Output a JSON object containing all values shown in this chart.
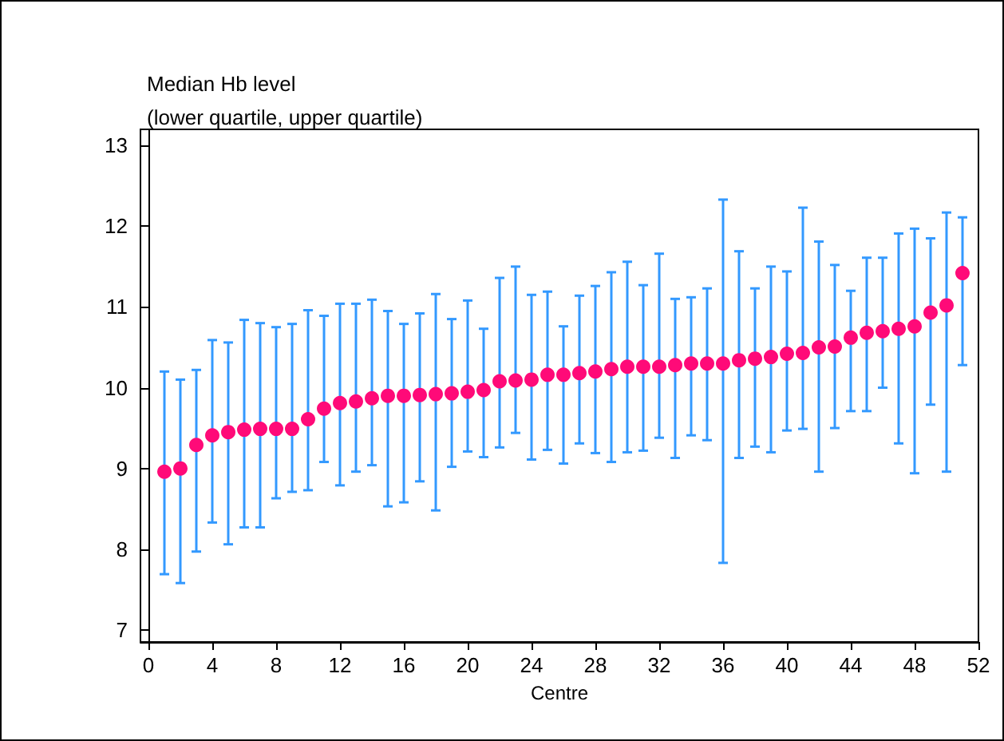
{
  "chart_data": {
    "type": "scatter",
    "title": "Median Hb level",
    "subtitle": "(lower quartile, upper quartile)",
    "xlabel": "Centre",
    "x": [
      1,
      2,
      3,
      4,
      5,
      6,
      7,
      8,
      9,
      10,
      11,
      12,
      13,
      14,
      15,
      16,
      17,
      18,
      19,
      20,
      21,
      22,
      23,
      24,
      25,
      26,
      27,
      28,
      29,
      30,
      31,
      32,
      33,
      34,
      35,
      36,
      37,
      38,
      39,
      40,
      41,
      42,
      43,
      44,
      45,
      46,
      47,
      48,
      49,
      50,
      51
    ],
    "series": [
      {
        "color": "#ff0a78",
        "values": [
          8.96,
          9.0,
          9.29,
          9.41,
          9.45,
          9.48,
          9.49,
          9.49,
          9.49,
          9.61,
          9.74,
          9.81,
          9.83,
          9.87,
          9.9,
          9.9,
          9.91,
          9.92,
          9.93,
          9.95,
          9.97,
          10.08,
          10.09,
          10.1,
          10.16,
          10.16,
          10.18,
          10.2,
          10.23,
          10.26,
          10.26,
          10.26,
          10.28,
          10.3,
          10.3,
          10.3,
          10.34,
          10.36,
          10.38,
          10.42,
          10.43,
          10.5,
          10.51,
          10.62,
          10.68,
          10.7,
          10.73,
          10.76,
          10.93,
          11.02,
          11.42
        ],
        "errors": [
          [
            7.69,
            10.2
          ],
          [
            7.58,
            10.1
          ],
          [
            7.97,
            10.22
          ],
          [
            8.33,
            10.59
          ],
          [
            8.06,
            10.56
          ],
          [
            8.27,
            10.84
          ],
          [
            8.27,
            10.8
          ],
          [
            8.63,
            10.75
          ],
          [
            8.71,
            10.79
          ],
          [
            8.73,
            10.96
          ],
          [
            9.08,
            10.89
          ],
          [
            8.79,
            11.04
          ],
          [
            8.96,
            11.04
          ],
          [
            9.04,
            11.09
          ],
          [
            8.53,
            10.95
          ],
          [
            8.58,
            10.79
          ],
          [
            8.84,
            10.92
          ],
          [
            8.48,
            11.16
          ],
          [
            9.02,
            10.85
          ],
          [
            9.21,
            11.08
          ],
          [
            9.14,
            10.73
          ],
          [
            9.26,
            11.36
          ],
          [
            9.44,
            11.5
          ],
          [
            9.11,
            11.15
          ],
          [
            9.23,
            11.19
          ],
          [
            9.06,
            10.76
          ],
          [
            9.31,
            11.14
          ],
          [
            9.19,
            11.26
          ],
          [
            9.08,
            11.43
          ],
          [
            9.2,
            11.56
          ],
          [
            9.22,
            11.27
          ],
          [
            9.38,
            11.66
          ],
          [
            9.13,
            11.1
          ],
          [
            9.41,
            11.12
          ],
          [
            9.35,
            11.23
          ],
          [
            7.83,
            12.33
          ],
          [
            9.13,
            11.69
          ],
          [
            9.27,
            11.23
          ],
          [
            9.2,
            11.5
          ],
          [
            9.47,
            11.44
          ],
          [
            9.49,
            12.23
          ],
          [
            8.96,
            11.81
          ],
          [
            9.5,
            11.52
          ],
          [
            9.71,
            11.2
          ],
          [
            9.71,
            11.61
          ],
          [
            10.0,
            11.61
          ],
          [
            9.31,
            11.91
          ],
          [
            8.94,
            11.97
          ],
          [
            9.79,
            11.85
          ],
          [
            8.96,
            12.17
          ],
          [
            10.28,
            12.11
          ]
        ]
      }
    ],
    "xlim": [
      -0.5,
      52
    ],
    "xticks": [
      0,
      4,
      8,
      12,
      16,
      20,
      24,
      28,
      32,
      36,
      40,
      44,
      48,
      52
    ],
    "ylim": [
      6.85,
      13.2
    ],
    "yticks": [
      7,
      8,
      9,
      10,
      11,
      12,
      13
    ],
    "marker": "circle",
    "grid": false
  }
}
